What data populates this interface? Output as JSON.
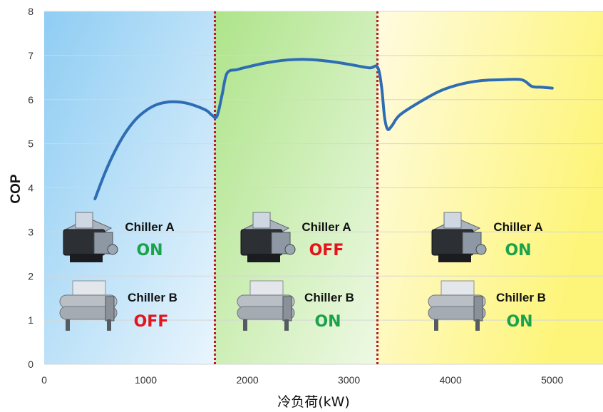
{
  "chart_data": {
    "type": "line",
    "title": "",
    "xlabel": "冷负荷(kW)",
    "ylabel": "COP",
    "xlim": [
      0,
      5500
    ],
    "ylim": [
      0,
      8
    ],
    "xticks": [
      0,
      1000,
      2000,
      3000,
      4000,
      5000
    ],
    "yticks": [
      0,
      1,
      2,
      3,
      4,
      5,
      6,
      7,
      8
    ],
    "grid": "horizontal",
    "series": [
      {
        "color": "#2e6db4",
        "x": [
          500,
          600,
          700,
          800,
          900,
          1000,
          1100,
          1200,
          1300,
          1400,
          1500,
          1600,
          1650,
          1700,
          1750,
          1800,
          1900,
          2000,
          2200,
          2400,
          2600,
          2800,
          3000,
          3200,
          3280,
          3320,
          3350,
          3380,
          3420,
          3500,
          3700,
          3900,
          4100,
          4300,
          4500,
          4700,
          4800,
          4900,
          5000
        ],
        "y": [
          3.75,
          4.35,
          4.85,
          5.25,
          5.55,
          5.75,
          5.88,
          5.94,
          5.95,
          5.92,
          5.85,
          5.75,
          5.65,
          5.62,
          6.1,
          6.6,
          6.68,
          6.74,
          6.84,
          6.9,
          6.91,
          6.87,
          6.8,
          6.72,
          6.74,
          6.3,
          5.6,
          5.33,
          5.4,
          5.65,
          5.95,
          6.2,
          6.35,
          6.43,
          6.45,
          6.45,
          6.3,
          6.28,
          6.26
        ]
      }
    ],
    "regions": [
      {
        "x_range": [
          0,
          1680
        ],
        "color": "#a9d8f5",
        "chiller_a": "ON",
        "chiller_b": "OFF"
      },
      {
        "x_range": [
          1680,
          3280
        ],
        "color": "#bfe8a2",
        "chiller_a": "OFF",
        "chiller_b": "ON"
      },
      {
        "x_range": [
          3280,
          5500
        ],
        "color": "#fdf7a6",
        "chiller_a": "ON",
        "chiller_b": "ON"
      }
    ],
    "dividers": [
      1680,
      3280
    ],
    "divider_color": "#c0181e",
    "annotations": {
      "chiller_a_label": "Chiller A",
      "chiller_b_label": "Chiller B",
      "on_color": "#1aa34a",
      "off_color": "#e3141b"
    }
  }
}
